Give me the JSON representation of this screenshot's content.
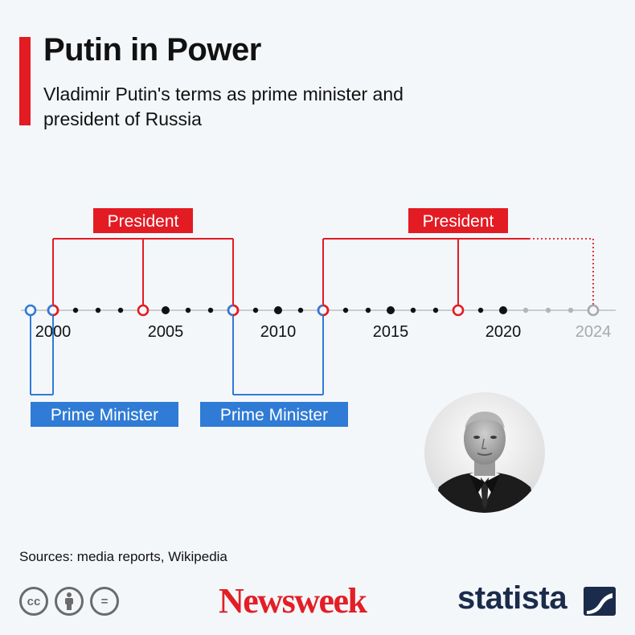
{
  "header": {
    "title": "Putin in Power",
    "subtitle": "Vladimir Putin's terms as prime minister and president of Russia"
  },
  "chart_data": {
    "type": "timeline",
    "title": "Putin in Power",
    "subtitle": "Vladimir Putin's terms as prime minister and president of Russia",
    "x_range": [
      1999,
      2024
    ],
    "tick_labels": [
      {
        "year": 2000,
        "label": "2000",
        "future": false
      },
      {
        "year": 2005,
        "label": "2005",
        "future": false
      },
      {
        "year": 2010,
        "label": "2010",
        "future": false
      },
      {
        "year": 2015,
        "label": "2015",
        "future": false
      },
      {
        "year": 2020,
        "label": "2020",
        "future": false
      },
      {
        "year": 2024,
        "label": "2024",
        "future": true
      }
    ],
    "years_past_end": 2021,
    "terms": [
      {
        "group": "President",
        "label": "President",
        "marks": [
          2000,
          2004,
          2008
        ],
        "end_projected": false
      },
      {
        "group": "President",
        "label": "President",
        "marks": [
          2012,
          2018,
          2024
        ],
        "end_projected": true
      },
      {
        "group": "Prime Minister",
        "label": "Prime Minister",
        "marks": [
          1999,
          2000
        ],
        "end_projected": false
      },
      {
        "group": "Prime Minister",
        "label": "Prime Minister",
        "marks": [
          2008,
          2012
        ],
        "end_projected": false
      }
    ],
    "colors": {
      "president": "#e31b23",
      "prime_minister": "#2f7bd5",
      "future": "#a8a8a8",
      "axis": "#cccccc",
      "dot": "#111111"
    }
  },
  "footer": {
    "sources": "Sources: media reports, Wikipedia",
    "cc_icons": [
      "cc-icon",
      "attribution-icon",
      "no-derivatives-icon"
    ],
    "cc_glyphs": [
      "cc",
      "=",
      "="
    ],
    "newsweek": "Newsweek",
    "statista": "statista"
  }
}
